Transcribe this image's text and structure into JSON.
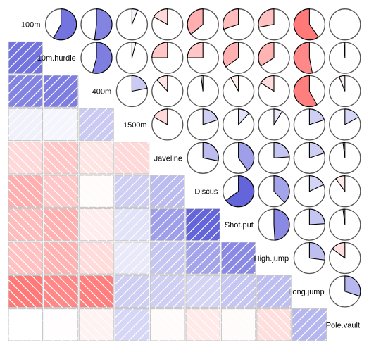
{
  "chart_data": {
    "type": "heatmap",
    "variables": [
      "100m",
      "10m.hurdle",
      "400m",
      "1500m",
      "Javeline",
      "Discus",
      "Shot.put",
      "High.jump",
      "Long.jump",
      "Pole.vault"
    ],
    "display_labels": [
      "100m",
      "10m.hurdle",
      "400m",
      "1500m",
      "Javeline",
      "Discus",
      "Shot.put",
      "High.jump",
      "Long.jump",
      "Pole.vault"
    ],
    "correlations": [
      [
        1.0,
        0.58,
        0.52,
        0.06,
        -0.17,
        -0.36,
        -0.3,
        -0.28,
        -0.6,
        0.0
      ],
      [
        0.58,
        1.0,
        0.54,
        0.04,
        -0.25,
        -0.25,
        -0.35,
        -0.34,
        -0.53,
        -0.01
      ],
      [
        0.52,
        0.54,
        1.0,
        0.22,
        -0.12,
        -0.02,
        -0.08,
        -0.16,
        -0.58,
        -0.06
      ],
      [
        0.06,
        0.04,
        0.22,
        1.0,
        -0.17,
        0.2,
        0.12,
        0.09,
        0.2,
        0.17
      ],
      [
        -0.17,
        -0.25,
        -0.12,
        -0.17,
        1.0,
        0.28,
        0.4,
        0.24,
        0.2,
        -0.02
      ],
      [
        -0.36,
        -0.25,
        -0.02,
        0.2,
        0.28,
        1.0,
        0.65,
        0.38,
        0.18,
        -0.1
      ],
      [
        -0.3,
        -0.35,
        -0.08,
        0.12,
        0.4,
        0.65,
        1.0,
        0.49,
        0.24,
        -0.02
      ],
      [
        -0.28,
        -0.34,
        -0.16,
        0.09,
        0.24,
        0.38,
        0.49,
        1.0,
        0.27,
        -0.15
      ],
      [
        -0.6,
        -0.53,
        -0.58,
        0.2,
        0.2,
        0.18,
        0.24,
        0.27,
        1.0,
        0.3
      ],
      [
        0.0,
        -0.01,
        -0.06,
        0.17,
        -0.02,
        -0.1,
        -0.02,
        -0.15,
        0.3,
        1.0
      ]
    ],
    "lower_triangle": "shade",
    "upper_triangle": "pie",
    "colors": {
      "positive": "#1010c8",
      "negative": "#ff2020",
      "neutral": "#ffffff",
      "grid": "#c8c8c8"
    }
  }
}
